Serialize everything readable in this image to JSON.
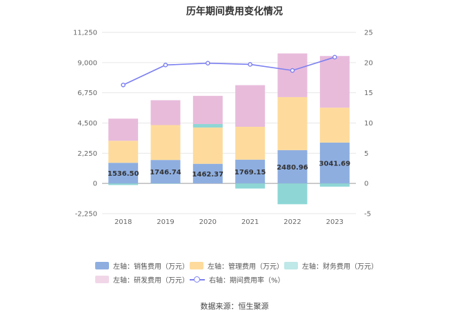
{
  "chart_data": {
    "type": "bar",
    "title": "历年期间费用变化情况",
    "categories": [
      "2018",
      "2019",
      "2020",
      "2021",
      "2022",
      "2023"
    ],
    "left_axis": {
      "ylim": [
        -2250,
        11250
      ],
      "ticks": [
        "11,250",
        "9,000",
        "6,750",
        "4,500",
        "2,250",
        "0",
        "-2,250"
      ],
      "tick_values": [
        11250,
        9000,
        6750,
        4500,
        2250,
        0,
        -2250
      ]
    },
    "right_axis": {
      "ylim": [
        -5,
        25
      ],
      "ticks": [
        "25",
        "20",
        "15",
        "10",
        "5",
        "0",
        "-5"
      ],
      "tick_values": [
        25,
        20,
        15,
        10,
        5,
        0,
        -5
      ]
    },
    "series": [
      {
        "name": "左轴：销售费用（万元）",
        "type": "bar",
        "color": "#8eaee0",
        "values": [
          1536.5,
          1746.74,
          1462.37,
          1769.15,
          2480.96,
          3041.69
        ],
        "labels": [
          "1536.50",
          "1746.74",
          "1462.37",
          "1769.15",
          "2480.96",
          "3041.69"
        ]
      },
      {
        "name": "左轴：管理费用（万元）",
        "type": "bar",
        "color": "#fedb9c",
        "values": [
          1640,
          2600,
          2700,
          2450,
          3950,
          2600
        ]
      },
      {
        "name": "左轴：财务费用（万元）",
        "type": "bar",
        "color": "#8ed6d6",
        "values": [
          -120,
          -20,
          260,
          -380,
          -1550,
          -240
        ]
      },
      {
        "name": "左轴：研发费用（万元）",
        "type": "bar",
        "color": "#e8bbdb",
        "values": [
          1650,
          1850,
          2100,
          3100,
          3250,
          3850
        ]
      },
      {
        "name": "右轴：期间费用率（%）",
        "type": "line",
        "color": "#7b7ff0",
        "values": [
          16.3,
          19.6,
          19.9,
          19.7,
          18.7,
          20.9
        ]
      }
    ],
    "source": "数据来源：恒生聚源"
  }
}
